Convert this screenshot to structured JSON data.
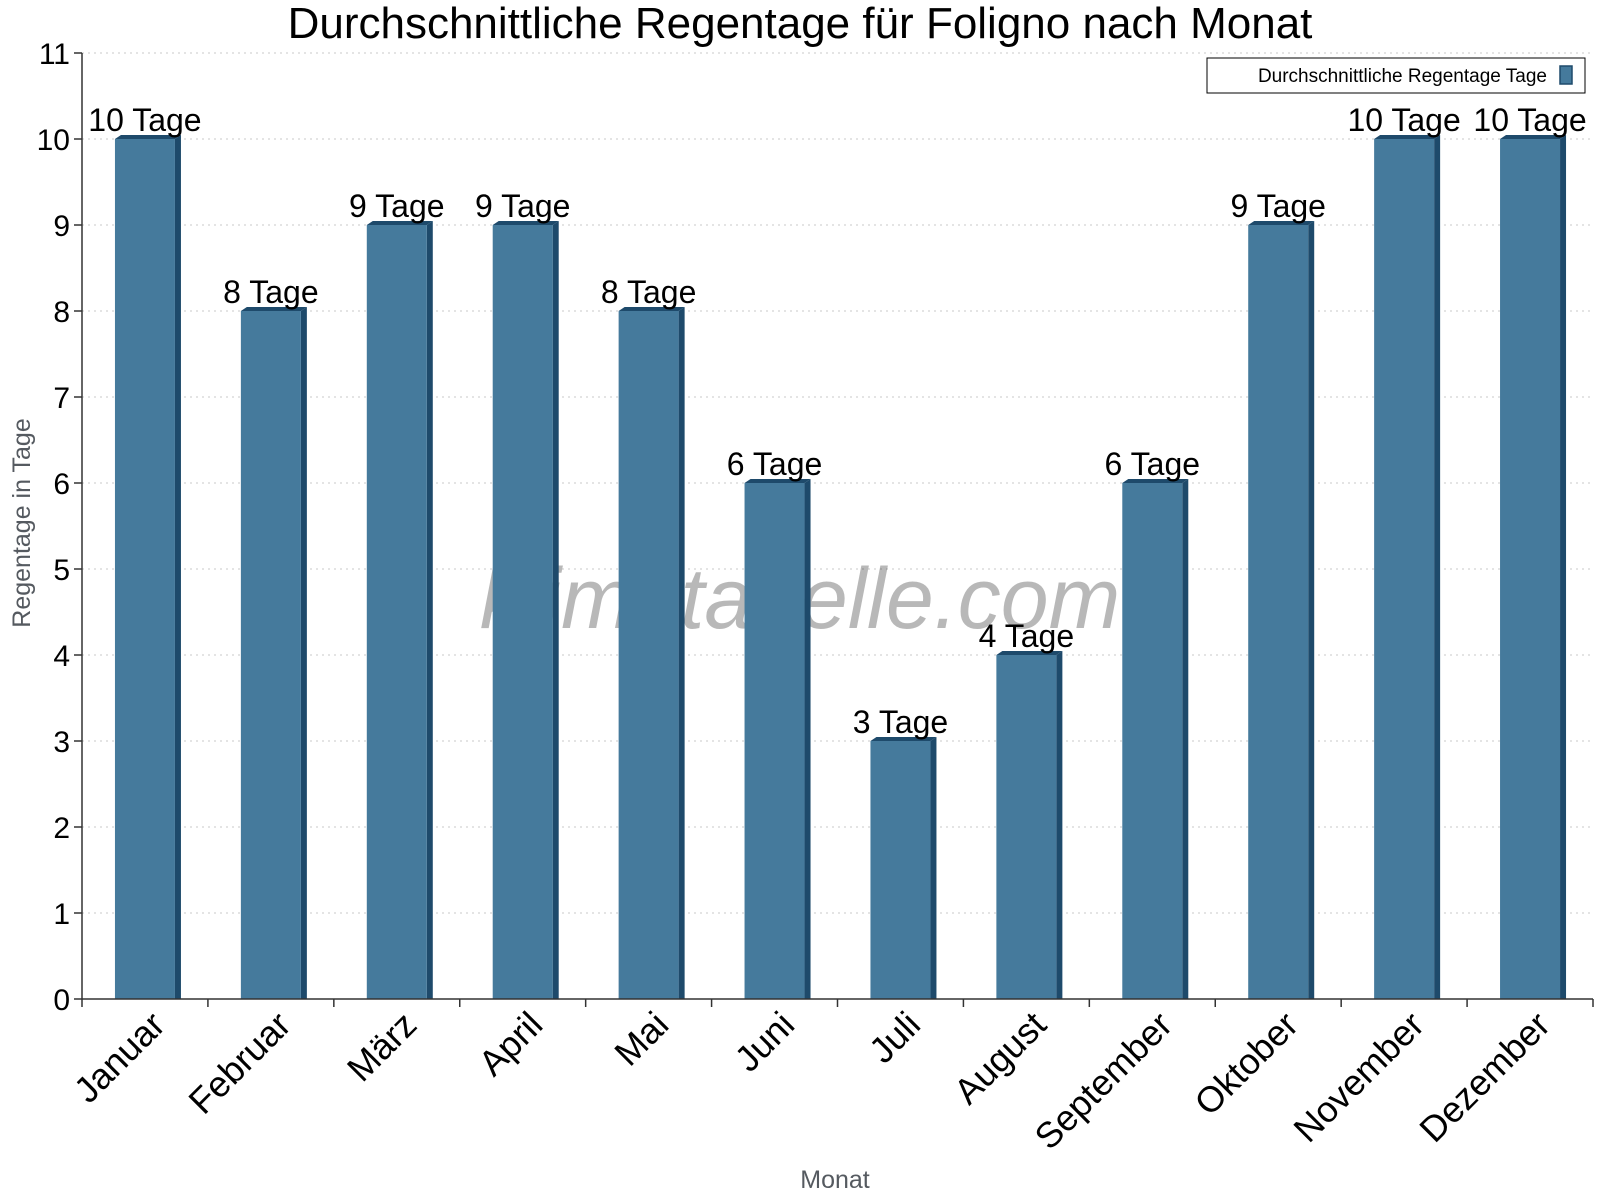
{
  "chart_data": {
    "type": "bar",
    "title": "Durchschnittliche Regentage für Foligno nach Monat",
    "xlabel": "Monat",
    "ylabel": "Regentage in Tage",
    "ylim": [
      0,
      11
    ],
    "yticks": [
      0,
      1,
      2,
      3,
      4,
      5,
      6,
      7,
      8,
      9,
      10,
      11
    ],
    "grid": true,
    "legend_position": "top-right",
    "categories": [
      "Januar",
      "Februar",
      "März",
      "April",
      "Mai",
      "Juni",
      "Juli",
      "August",
      "September",
      "Oktober",
      "November",
      "Dezember"
    ],
    "series": [
      {
        "name": "Durchschnittliche Regentage Tage",
        "values": [
          10,
          8,
          9,
          9,
          8,
          6,
          3,
          4,
          6,
          9,
          10,
          10
        ],
        "labels": [
          "10 Tage",
          "8 Tage",
          "9 Tage",
          "9 Tage",
          "8 Tage",
          "6 Tage",
          "3 Tage",
          "4 Tage",
          "6 Tage",
          "9 Tage",
          "10 Tage",
          "10 Tage"
        ],
        "color": "#457a9c",
        "edge_color": "#1e4a6b"
      }
    ]
  },
  "watermark": "klimatabelle.com"
}
